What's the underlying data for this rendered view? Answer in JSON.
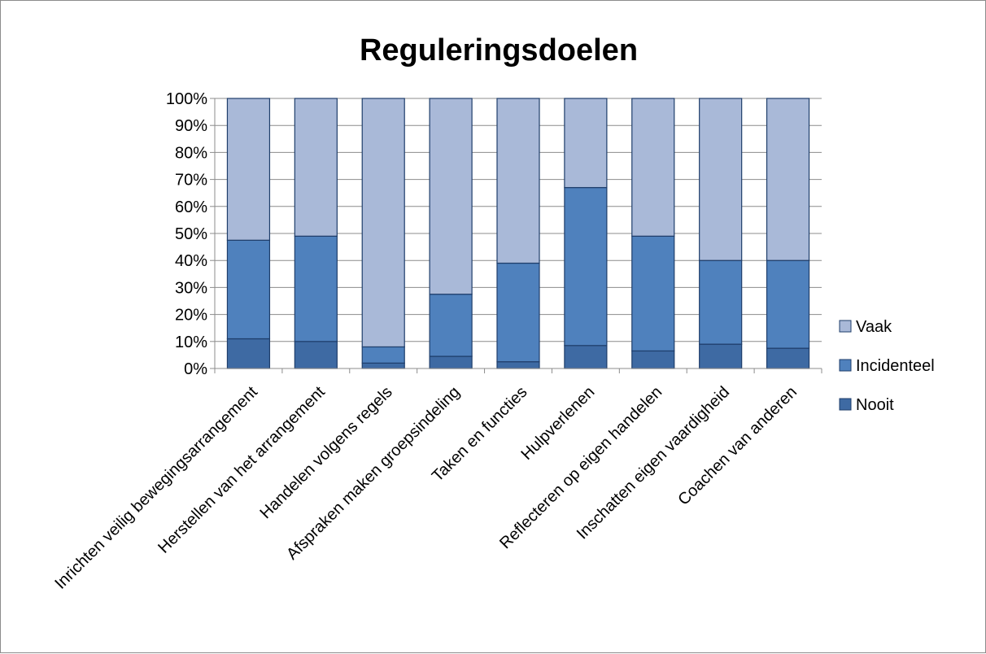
{
  "chart_data": {
    "type": "bar",
    "stacked": true,
    "percent": true,
    "title": "Reguleringsdoelen",
    "xlabel": "",
    "ylabel": "",
    "ylim": [
      0,
      100
    ],
    "yticks": [
      "0%",
      "10%",
      "20%",
      "30%",
      "40%",
      "50%",
      "60%",
      "70%",
      "80%",
      "90%",
      "100%"
    ],
    "grid": true,
    "legend_position": "right",
    "categories": [
      "Inrichten veilig bewegingsarrangement",
      "Herstellen van het arrangement",
      "Handelen volgens regels",
      "Afspraken maken groepsindeling",
      "Taken en functies",
      "Hulpverlenen",
      "Reflecteren op eigen handelen",
      "Inschatten eigen vaardigheid",
      "Coachen van anderen"
    ],
    "series": [
      {
        "name": "Nooit",
        "color": "#3e6aa3",
        "values": [
          11,
          10,
          2,
          4.5,
          2.5,
          8.5,
          6.5,
          9,
          7.5
        ]
      },
      {
        "name": "Incidenteel",
        "color": "#4f81bd",
        "values": [
          36.5,
          39,
          6,
          23,
          36.5,
          58.5,
          42.5,
          31,
          32.5
        ]
      },
      {
        "name": "Vaak",
        "color": "#a9b9d8",
        "values": [
          52.5,
          51,
          92,
          72.5,
          61,
          33,
          51,
          60,
          60
        ]
      }
    ]
  }
}
